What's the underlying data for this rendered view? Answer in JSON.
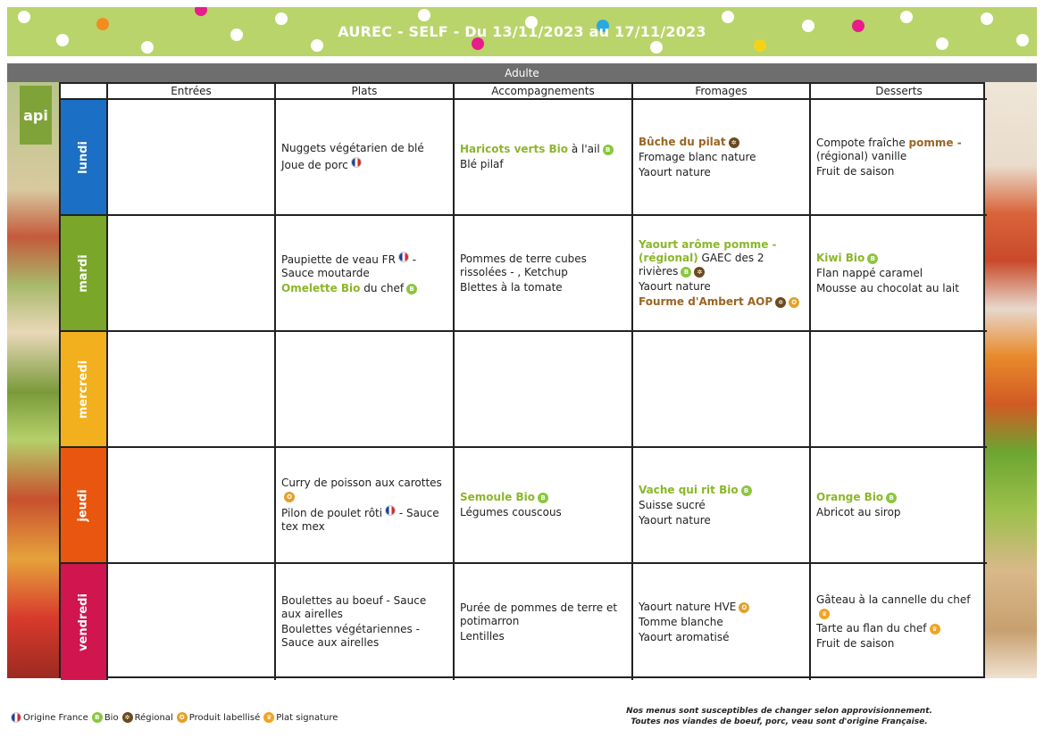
{
  "header": {
    "title": "AUREC - SELF - Du 13/11/2023 au 17/11/2023",
    "audience": "Adulte",
    "logo_text": "api"
  },
  "colors": {
    "banner": "#b9d46a",
    "audience_bar": "#6e6e6e",
    "bio": "#8cb62a",
    "regional": "#9a6524"
  },
  "columns": [
    "Entrées",
    "Plats",
    "Accompagnements",
    "Fromages",
    "Desserts"
  ],
  "days": [
    {
      "label": "lundi",
      "color": "#1b6fc4",
      "entrees": [],
      "plats": [
        {
          "text": "Nuggets végétarien de blé"
        },
        {
          "text": "Joue de porc",
          "icons": [
            "fr"
          ]
        }
      ],
      "accompagnements": [
        {
          "bio": "Haricots verts Bio",
          "text": " à l'ail",
          "icons": [
            "bio"
          ]
        },
        {
          "text": "Blé pilaf"
        }
      ],
      "fromages": [
        {
          "reg": "Bûche du pilat",
          "icons": [
            "reg"
          ]
        },
        {
          "text": "Fromage blanc nature"
        },
        {
          "text": "Yaourt nature"
        }
      ],
      "desserts": [
        {
          "text": "Compote fraîche ",
          "reg": "pomme -",
          "tail": "(régional) vanille"
        },
        {
          "text": "Fruit de saison"
        }
      ]
    },
    {
      "label": "mardi",
      "color": "#7aa629",
      "entrees": [],
      "plats": [
        {
          "text": "Paupiette de veau FR",
          "icons": [
            "fr"
          ],
          "tail": " - Sauce moutarde"
        },
        {
          "bio": "Omelette Bio",
          "text": " du chef",
          "icons": [
            "bio"
          ]
        }
      ],
      "accompagnements": [
        {
          "text": "Pommes de terre cubes rissolées - , Ketchup"
        },
        {
          "text": "Blettes à la tomate"
        }
      ],
      "fromages": [
        {
          "bio": "Yaourt arôme pomme - (régional)",
          "text": " GAEC des 2 rivières",
          "icons": [
            "bio",
            "reg"
          ]
        },
        {
          "text": "Yaourt nature"
        },
        {
          "reg": "Fourme d'Ambert AOP",
          "icons": [
            "reg",
            "lab"
          ]
        }
      ],
      "desserts": [
        {
          "bio": "Kiwi Bio",
          "icons": [
            "bio"
          ]
        },
        {
          "text": "Flan nappé caramel"
        },
        {
          "text": "Mousse au chocolat au lait"
        }
      ]
    },
    {
      "label": "mercredi",
      "color": "#f2b01e",
      "entrees": [],
      "plats": [],
      "accompagnements": [],
      "fromages": [],
      "desserts": []
    },
    {
      "label": "jeudi",
      "color": "#e8560f",
      "entrees": [],
      "plats": [
        {
          "text": "Curry de poisson aux carottes",
          "icons": [
            "lab"
          ]
        },
        {
          "text": "Pilon de poulet rôti",
          "icons": [
            "fr"
          ],
          "tail": " - Sauce tex mex"
        }
      ],
      "accompagnements": [
        {
          "bio": "Semoule Bio",
          "icons": [
            "bio"
          ]
        },
        {
          "text": "Légumes couscous"
        }
      ],
      "fromages": [
        {
          "bio": "Vache qui rit Bio",
          "icons": [
            "bio"
          ]
        },
        {
          "text": "Suisse sucré"
        },
        {
          "text": "Yaourt nature"
        }
      ],
      "desserts": [
        {
          "bio": "Orange Bio",
          "icons": [
            "bio"
          ]
        },
        {
          "text": "Abricot au sirop"
        }
      ]
    },
    {
      "label": "vendredi",
      "color": "#d0154f",
      "entrees": [],
      "plats": [
        {
          "text": "Boulettes au boeuf - Sauce aux airelles"
        },
        {
          "text": "Boulettes végétariennes - Sauce aux airelles"
        }
      ],
      "accompagnements": [
        {
          "text": "Purée de pommes de terre et potimarron"
        },
        {
          "text": "Lentilles"
        }
      ],
      "fromages": [
        {
          "text": "Yaourt nature HVE",
          "icons": [
            "lab"
          ]
        },
        {
          "text": "Tomme blanche"
        },
        {
          "text": "Yaourt aromatisé"
        }
      ],
      "desserts": [
        {
          "text": "Gâteau à la cannelle du chef",
          "icons": [
            "sig"
          ]
        },
        {
          "text": "Tarte au flan du chef",
          "icons": [
            "sig"
          ]
        },
        {
          "text": "Fruit de saison"
        }
      ]
    }
  ],
  "legend": [
    {
      "icon": "fr",
      "label": "Origine France"
    },
    {
      "icon": "bio",
      "label": "Bio"
    },
    {
      "icon": "reg",
      "label": "Régional"
    },
    {
      "icon": "lab",
      "label": "Produit labellisé"
    },
    {
      "icon": "sig",
      "label": "Plat signature"
    }
  ],
  "footer_notes": [
    "Nos menus sont susceptibles de changer selon approvisionnement.",
    "Toutes nos viandes de boeuf, porc, veau sont d'origine Française."
  ]
}
